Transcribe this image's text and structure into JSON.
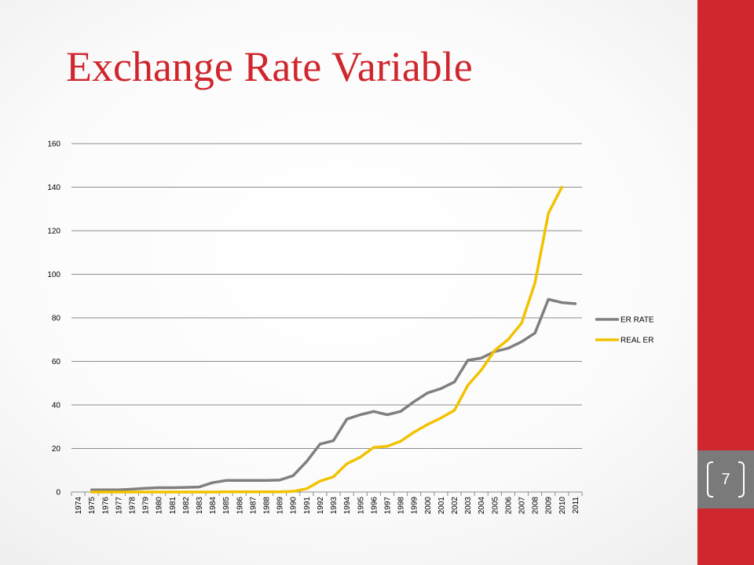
{
  "slide": {
    "title": "Exchange Rate Variable",
    "page_number": "7",
    "accent_color": "#d0262d",
    "number_box_color": "#7a7a7a"
  },
  "chart_data": {
    "type": "line",
    "title": "",
    "xlabel": "",
    "ylabel": "",
    "ylim": [
      0,
      160
    ],
    "yticks": [
      0,
      20,
      40,
      60,
      80,
      100,
      120,
      140,
      160
    ],
    "grid": true,
    "legend_position": "right",
    "x": [
      "1974",
      "1975",
      "1976",
      "1977",
      "1978",
      "1979",
      "1980",
      "1981",
      "1982",
      "1983",
      "1984",
      "1985",
      "1986",
      "1987",
      "1988",
      "1989",
      "1990",
      "1991",
      "1992",
      "1993",
      "1994",
      "1995",
      "1996",
      "1997",
      "1998",
      "1999",
      "2000",
      "2001",
      "2002",
      "2003",
      "2004",
      "2005",
      "2006",
      "2007",
      "2008",
      "2009",
      "2010",
      "2011"
    ],
    "series": [
      {
        "name": "ER RATE",
        "color": "#7f7f7f",
        "values": [
          null,
          1,
          1,
          1,
          1.3,
          1.7,
          2,
          2,
          2.1,
          2.3,
          4.3,
          5.3,
          5.3,
          5.3,
          5.3,
          5.5,
          7.5,
          14,
          22,
          23.6,
          33.5,
          35.5,
          37,
          35.5,
          37,
          41.5,
          45.5,
          47.5,
          50.5,
          60.5,
          61.5,
          64.5,
          66,
          69,
          73,
          88.5,
          87,
          86.5
        ]
      },
      {
        "name": "REAL ER",
        "color": "#f2c200",
        "values": [
          null,
          0,
          0,
          0,
          0,
          0,
          0,
          0,
          0,
          0,
          0,
          0.1,
          0.1,
          0.1,
          0.1,
          0.1,
          0.3,
          1.5,
          5,
          7,
          13,
          16,
          20.5,
          21,
          23.3,
          27.5,
          31,
          34,
          37.5,
          49,
          56,
          65,
          70,
          77.5,
          96,
          128,
          140,
          null
        ]
      }
    ]
  }
}
